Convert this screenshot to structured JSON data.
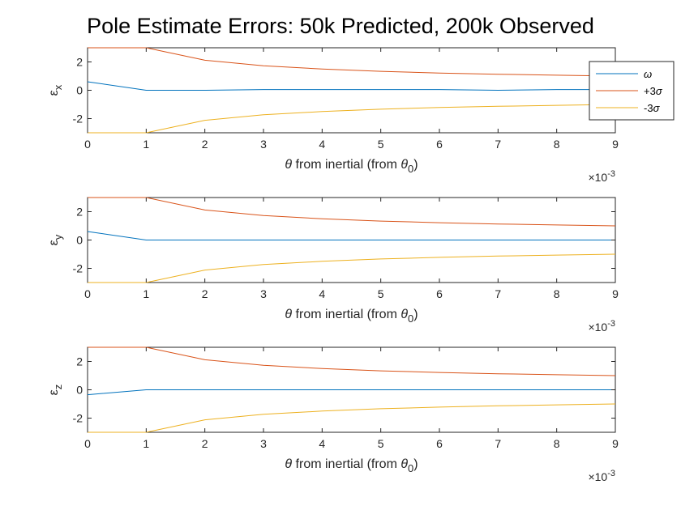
{
  "figure_title": "Pole Estimate Errors: 50k Predicted, 200k Observed",
  "legend": [
    {
      "label": "ω",
      "color": "#0072BD",
      "math": true,
      "suffix": ""
    },
    {
      "label": "+3",
      "color": "#D95319",
      "math": false,
      "suffix": "σ"
    },
    {
      "label": "-3",
      "color": "#EDB120",
      "math": false,
      "suffix": "σ"
    }
  ],
  "chart_data": [
    {
      "type": "line",
      "ylabel": "ε",
      "ylabel_sub": "x",
      "xlabel_prefix": "θ",
      "xlabel_main": " from inertial (from ",
      "xlabel_theta": "θ",
      "xlabel_sub": "0",
      "xlabel_close": ")",
      "x_multiplier": "×10",
      "x_multiplier_exp": "-3",
      "xlim": [
        0,
        9
      ],
      "ylim": [
        -3,
        3
      ],
      "xticks": [
        "0",
        "1",
        "2",
        "3",
        "4",
        "5",
        "6",
        "7",
        "8",
        "9"
      ],
      "yticks": [
        "2",
        "0",
        "-2"
      ],
      "x": [
        0,
        1,
        2,
        3,
        4,
        5,
        6,
        7,
        8,
        9
      ],
      "series": [
        {
          "name": "ω",
          "color": "#0072BD",
          "values": [
            0.6,
            0.0,
            0.0,
            0.05,
            0.05,
            0.05,
            0.05,
            0.0,
            0.05,
            0.05
          ]
        },
        {
          "name": "+3σ",
          "color": "#D95319",
          "values": [
            3.0,
            3.0,
            2.12,
            1.73,
            1.5,
            1.34,
            1.22,
            1.13,
            1.06,
            1.0
          ]
        },
        {
          "name": "-3σ",
          "color": "#EDB120",
          "values": [
            -3.0,
            -3.0,
            -2.12,
            -1.73,
            -1.5,
            -1.34,
            -1.22,
            -1.13,
            -1.06,
            -1.0
          ]
        }
      ]
    },
    {
      "type": "line",
      "ylabel": "ε",
      "ylabel_sub": "y",
      "xlabel_prefix": "θ",
      "xlabel_main": " from inertial (from ",
      "xlabel_theta": "θ",
      "xlabel_sub": "0",
      "xlabel_close": ")",
      "x_multiplier": "×10",
      "x_multiplier_exp": "-3",
      "xlim": [
        0,
        9
      ],
      "ylim": [
        -3,
        3
      ],
      "xticks": [
        "0",
        "1",
        "2",
        "3",
        "4",
        "5",
        "6",
        "7",
        "8",
        "9"
      ],
      "yticks": [
        "2",
        "0",
        "-2"
      ],
      "x": [
        0,
        1,
        2,
        3,
        4,
        5,
        6,
        7,
        8,
        9
      ],
      "series": [
        {
          "name": "ω",
          "color": "#0072BD",
          "values": [
            0.6,
            0.0,
            0.0,
            0.0,
            0.0,
            0.0,
            0.0,
            0.0,
            0.0,
            0.0
          ]
        },
        {
          "name": "+3σ",
          "color": "#D95319",
          "values": [
            3.0,
            3.0,
            2.12,
            1.73,
            1.5,
            1.34,
            1.22,
            1.13,
            1.06,
            1.0
          ]
        },
        {
          "name": "-3σ",
          "color": "#EDB120",
          "values": [
            -3.0,
            -3.0,
            -2.12,
            -1.73,
            -1.5,
            -1.34,
            -1.22,
            -1.13,
            -1.06,
            -1.0
          ]
        }
      ]
    },
    {
      "type": "line",
      "ylabel": "ε",
      "ylabel_sub": "z",
      "xlabel_prefix": "θ",
      "xlabel_main": " from inertial (from ",
      "xlabel_theta": "θ",
      "xlabel_sub": "0",
      "xlabel_close": ")",
      "x_multiplier": "×10",
      "x_multiplier_exp": "-3",
      "xlim": [
        0,
        9
      ],
      "ylim": [
        -3,
        3
      ],
      "xticks": [
        "0",
        "1",
        "2",
        "3",
        "4",
        "5",
        "6",
        "7",
        "8",
        "9"
      ],
      "yticks": [
        "2",
        "0",
        "-2"
      ],
      "x": [
        0,
        1,
        2,
        3,
        4,
        5,
        6,
        7,
        8,
        9
      ],
      "series": [
        {
          "name": "ω",
          "color": "#0072BD",
          "values": [
            -0.35,
            0.0,
            0.0,
            0.0,
            0.0,
            0.0,
            0.0,
            0.0,
            0.0,
            0.0
          ]
        },
        {
          "name": "+3σ",
          "color": "#D95319",
          "values": [
            3.0,
            3.0,
            2.12,
            1.73,
            1.5,
            1.34,
            1.22,
            1.13,
            1.06,
            1.0
          ]
        },
        {
          "name": "-3σ",
          "color": "#EDB120",
          "values": [
            -3.0,
            -3.0,
            -2.12,
            -1.73,
            -1.5,
            -1.34,
            -1.22,
            -1.13,
            -1.06,
            -1.0
          ]
        }
      ]
    }
  ]
}
